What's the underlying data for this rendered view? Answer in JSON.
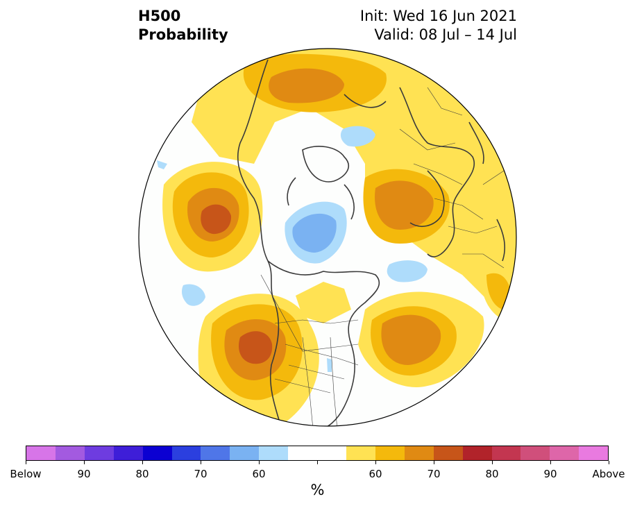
{
  "header": {
    "field": "H500",
    "product": "Probability",
    "init": "Init: Wed 16 Jun 2021",
    "valid": "Valid: 08 Jul – 14 Jul"
  },
  "map": {
    "projection": "north-polar-stereographic",
    "colors": {
      "land_border": "#3a3a3a",
      "globe_edge": "#000000"
    }
  },
  "colorbar": {
    "unit": "%",
    "colors": [
      "#d775e8",
      "#a35ae0",
      "#6e3ce0",
      "#3e1ed8",
      "#0b00d2",
      "#2b3fdf",
      "#4f76e8",
      "#7ab2f2",
      "#aedcfb",
      "#ffffff",
      "#ffffff",
      "#ffe253",
      "#f4b90c",
      "#e08a13",
      "#c75519",
      "#b1232a",
      "#c33650",
      "#d04f7b",
      "#de66a9",
      "#e97ae0"
    ],
    "tick_labels": [
      "Below",
      "90",
      "80",
      "70",
      "60",
      "60",
      "70",
      "80",
      "90",
      "Above"
    ]
  }
}
